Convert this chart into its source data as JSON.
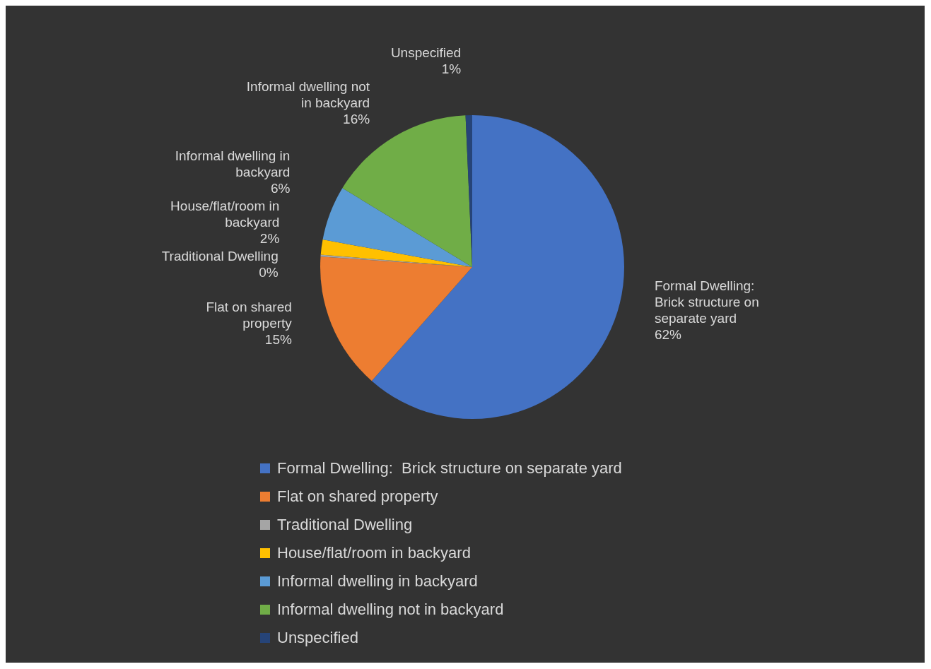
{
  "chart_data": {
    "type": "pie",
    "categories": [
      "Formal Dwelling:  Brick structure on separate yard",
      "Flat on shared property",
      "Traditional Dwelling",
      "House/flat/room in backyard",
      "Informal dwelling in backyard",
      "Informal dwelling not in backyard",
      "Unspecified"
    ],
    "values": [
      61.5,
      14.6,
      0.2,
      1.6,
      5.8,
      15.6,
      0.7
    ],
    "value_labels": [
      "62%",
      "15%",
      "0%",
      "2%",
      "6%",
      "16%",
      "1%"
    ],
    "colors": [
      "#4472c4",
      "#ed7d31",
      "#a5a5a5",
      "#ffc000",
      "#5b9bd5",
      "#70ad47",
      "#264478"
    ],
    "legend": "bottom"
  }
}
